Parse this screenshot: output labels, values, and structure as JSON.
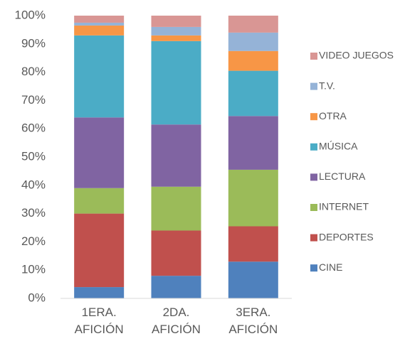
{
  "chart_data": {
    "type": "bar",
    "stacked": true,
    "categories": [
      "1ERA. AFICIÓN",
      "2DA. AFICIÓN",
      "3ERA. AFICIÓN"
    ],
    "series": [
      {
        "name": "CINE",
        "color": "#4f81bd",
        "values": [
          4,
          8,
          13
        ]
      },
      {
        "name": "DEPORTES",
        "color": "#c0504d",
        "values": [
          26,
          16,
          12.5
        ]
      },
      {
        "name": "INTERNET",
        "color": "#9bbb59",
        "values": [
          9,
          15.5,
          20
        ]
      },
      {
        "name": "LECTURA",
        "color": "#8064a2",
        "values": [
          25,
          22,
          19
        ]
      },
      {
        "name": "MÚSICA",
        "color": "#4bacc6",
        "values": [
          29,
          29.5,
          16
        ]
      },
      {
        "name": "OTRA",
        "color": "#f79646",
        "values": [
          3.5,
          2,
          7
        ]
      },
      {
        "name": "T.V.",
        "color": "#95b3d7",
        "values": [
          1,
          3,
          6.5
        ]
      },
      {
        "name": "VIDEO JUEGOS",
        "color": "#d99694",
        "values": [
          2.5,
          4,
          6
        ]
      }
    ],
    "ylim": [
      0,
      100
    ],
    "yticks": [
      {
        "value": 0,
        "label": "0%"
      },
      {
        "value": 10,
        "label": "10%"
      },
      {
        "value": 20,
        "label": "20%"
      },
      {
        "value": 30,
        "label": "30%"
      },
      {
        "value": 40,
        "label": "40%"
      },
      {
        "value": 50,
        "label": "50%"
      },
      {
        "value": 60,
        "label": "60%"
      },
      {
        "value": 70,
        "label": "70%"
      },
      {
        "value": 80,
        "label": "80%"
      },
      {
        "value": 90,
        "label": "90%"
      },
      {
        "value": 100,
        "label": "100%"
      }
    ],
    "grid": false,
    "legend": "right"
  }
}
